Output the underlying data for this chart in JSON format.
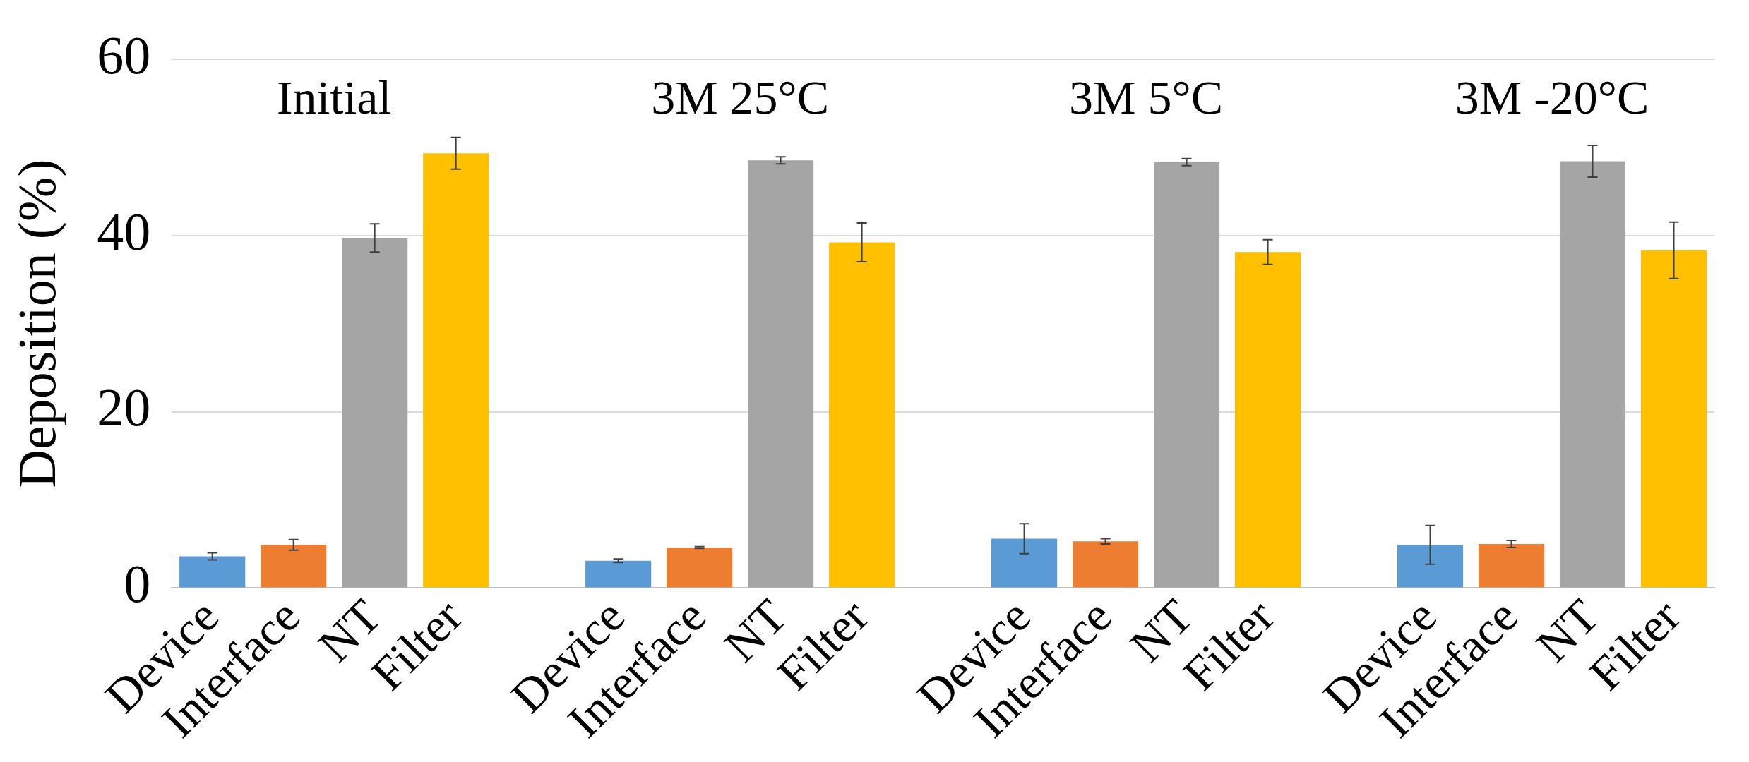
{
  "chart_data": {
    "type": "bar",
    "ylabel": "Deposition (%)",
    "categories": [
      "Device",
      "Interface",
      "NT",
      "Filter",
      null,
      "Device",
      "Interface",
      "NT",
      "Filter",
      null,
      "Device",
      "Interface",
      "NT",
      "Filter",
      null,
      "Device",
      "Interface",
      "NT",
      "Filter"
    ],
    "values": [
      3.6,
      4.9,
      39.7,
      49.3,
      null,
      3.1,
      4.6,
      48.5,
      39.2,
      null,
      5.6,
      5.3,
      48.3,
      38.1,
      null,
      4.9,
      5.0,
      48.4,
      38.3
    ],
    "errors": [
      0.4,
      0.6,
      1.6,
      1.8,
      null,
      0.2,
      0.1,
      0.4,
      2.2,
      null,
      1.7,
      0.3,
      0.4,
      1.4,
      null,
      2.2,
      0.4,
      1.8,
      3.2
    ],
    "colors": [
      "#5b9bd5",
      "#ed7d31",
      "#a5a5a5",
      "#ffc000",
      "#ffffff",
      "#5b9bd5",
      "#ed7d31",
      "#a5a5a5",
      "#ffc000",
      "#ffffff",
      "#5b9bd5",
      "#ed7d31",
      "#a5a5a5",
      "#ffc000",
      "#ffffff",
      "#5b9bd5",
      "#ed7d31",
      "#a5a5a5",
      "#ffc000"
    ],
    "annotations": [
      "Initial",
      "3M 25°C",
      "3M 5°C",
      "3M -20°C"
    ],
    "ylim": [
      0,
      60
    ],
    "yticks": [
      0,
      20,
      40,
      60
    ],
    "grid": "y",
    "legend": false
  }
}
